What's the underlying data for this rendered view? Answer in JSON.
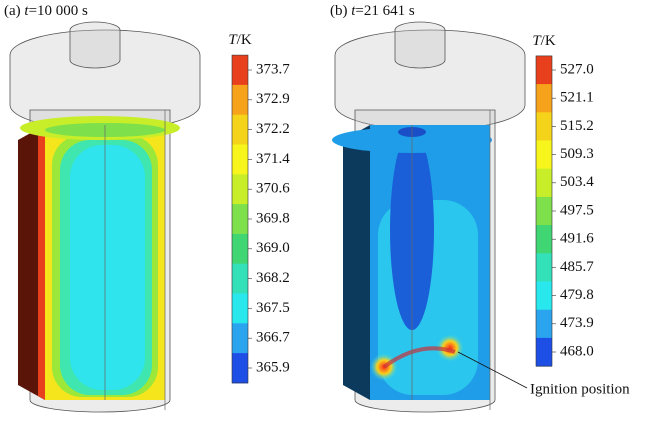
{
  "panels": [
    {
      "label": "(a)",
      "variable": "t",
      "value": "=10 000 s",
      "colorbar": {
        "title_var": "T",
        "title_unit": "/K",
        "ticks": [
          "373.7",
          "372.9",
          "372.2",
          "371.4",
          "370.6",
          "369.8",
          "369.0",
          "368.2",
          "367.5",
          "366.7",
          "365.9"
        ]
      }
    },
    {
      "label": "(b)",
      "variable": "t",
      "value": "=21 641 s",
      "colorbar": {
        "title_var": "T",
        "title_unit": "/K",
        "ticks": [
          "527.0",
          "521.1",
          "515.2",
          "509.3",
          "503.4",
          "497.5",
          "491.6",
          "485.7",
          "479.8",
          "473.9",
          "468.0"
        ]
      },
      "annotation": "Ignition position"
    }
  ]
}
